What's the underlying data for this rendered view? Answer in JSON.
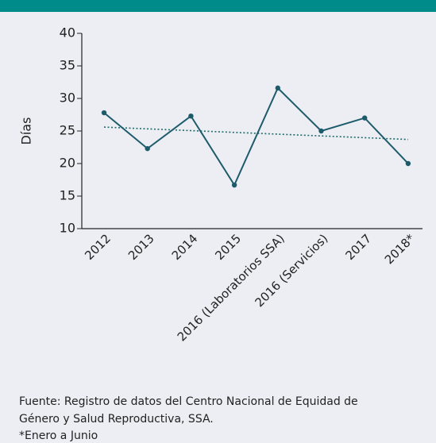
{
  "chart_data": {
    "type": "line",
    "ylabel": "Días",
    "categories": [
      "2012",
      "2013",
      "2014",
      "2015",
      "2016 (Laboratorios SSA)",
      "2016 (Servicios)",
      "2017",
      "2018*"
    ],
    "series": [
      {
        "color": "#1d5b6b",
        "values": [
          27.8,
          22.3,
          27.3,
          16.7,
          31.6,
          25,
          27,
          20
        ]
      }
    ],
    "trendline": {
      "color": "#1d6b6b",
      "values": [
        25.6,
        23.7
      ]
    },
    "ylim": [
      10,
      40
    ],
    "yticks": [
      10,
      15,
      20,
      25,
      30,
      35,
      40
    ],
    "notes": [
      "Fuente: Registro de datos del Centro Nacional de Equidad de",
      "Género y Salud Reproductiva, SSA.",
      "*Enero a Junio"
    ]
  }
}
